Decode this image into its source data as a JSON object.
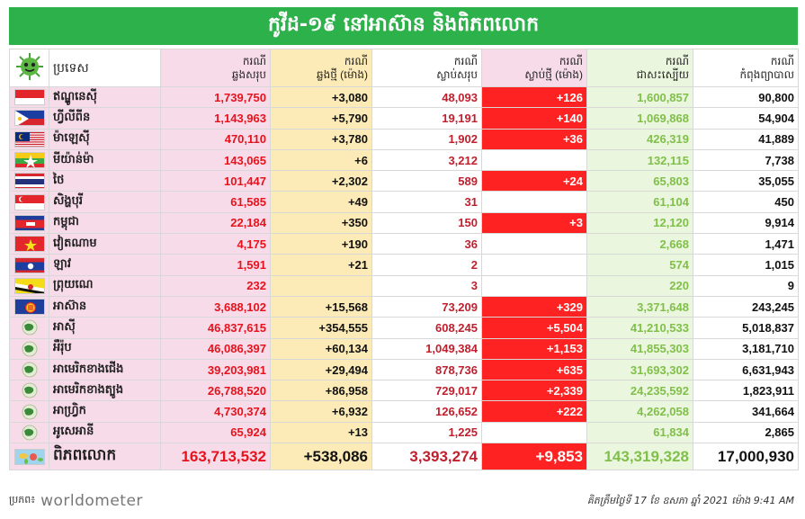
{
  "title": "កូវីដ-១៩ នៅអាស៊ាន និងពិភពលោក",
  "headers": {
    "country": "ប្រទេស",
    "cases": [
      "ករណី",
      "ឆ្លងសរុប"
    ],
    "new_cases": [
      "ករណី",
      "ឆ្លងថ្មី (ម៉ោង)"
    ],
    "deaths": [
      "ករណី",
      "ស្លាប់សរុប"
    ],
    "new_deaths": [
      "ករណី",
      "ស្លាប់ថ្មី (ម៉ោង)"
    ],
    "recovered": [
      "ករណី",
      "ជាសះស្បើយ"
    ],
    "active": [
      "ករណី",
      "កំពុងព្យាបាល"
    ]
  },
  "rows": [
    {
      "name": "ឥណ្ឌូនេស៊ី",
      "flag": "indonesia-flag",
      "cases": "1,739,750",
      "new_cases": "+3,080",
      "deaths": "48,093",
      "new_deaths": "+126",
      "recovered": "1,600,857",
      "active": "90,800"
    },
    {
      "name": "ហ្វីលីពីន",
      "flag": "philippines-flag",
      "cases": "1,143,963",
      "new_cases": "+5,790",
      "deaths": "19,191",
      "new_deaths": "+140",
      "recovered": "1,069,868",
      "active": "54,904"
    },
    {
      "name": "ម៉ាឡេស៊ី",
      "flag": "malaysia-flag",
      "cases": "470,110",
      "new_cases": "+3,780",
      "deaths": "1,902",
      "new_deaths": "+36",
      "recovered": "426,319",
      "active": "41,889"
    },
    {
      "name": "មីយ៉ាន់ម៉ា",
      "flag": "myanmar-flag",
      "cases": "143,065",
      "new_cases": "+6",
      "deaths": "3,212",
      "new_deaths": "",
      "recovered": "132,115",
      "active": "7,738"
    },
    {
      "name": "ថៃ",
      "flag": "thailand-flag",
      "cases": "101,447",
      "new_cases": "+2,302",
      "deaths": "589",
      "new_deaths": "+24",
      "recovered": "65,803",
      "active": "35,055"
    },
    {
      "name": "សិង្ហបុរី",
      "flag": "singapore-flag",
      "cases": "61,585",
      "new_cases": "+49",
      "deaths": "31",
      "new_deaths": "",
      "recovered": "61,104",
      "active": "450"
    },
    {
      "name": "កម្ពុជា",
      "flag": "cambodia-flag",
      "cases": "22,184",
      "new_cases": "+350",
      "deaths": "150",
      "new_deaths": "+3",
      "recovered": "12,120",
      "active": "9,914"
    },
    {
      "name": "វៀតណាម",
      "flag": "vietnam-flag",
      "cases": "4,175",
      "new_cases": "+190",
      "deaths": "36",
      "new_deaths": "",
      "recovered": "2,668",
      "active": "1,471"
    },
    {
      "name": "ឡាវ",
      "flag": "laos-flag",
      "cases": "1,591",
      "new_cases": "+21",
      "deaths": "2",
      "new_deaths": "",
      "recovered": "574",
      "active": "1,015"
    },
    {
      "name": "ព្រុយណេ",
      "flag": "brunei-flag",
      "cases": "232",
      "new_cases": "",
      "deaths": "3",
      "new_deaths": "",
      "recovered": "220",
      "active": "9"
    },
    {
      "name": "អាស៊ាន",
      "flag": "asean-flag",
      "cases": "3,688,102",
      "new_cases": "+15,568",
      "deaths": "73,209",
      "new_deaths": "+329",
      "recovered": "3,371,648",
      "active": "243,245"
    },
    {
      "name": "អាស៊ី",
      "flag": "asia-continent-icon",
      "cases": "46,837,615",
      "new_cases": "+354,555",
      "deaths": "608,245",
      "new_deaths": "+5,504",
      "recovered": "41,210,533",
      "active": "5,018,837"
    },
    {
      "name": "អឺរ៉ុប",
      "flag": "europe-continent-icon",
      "cases": "46,086,397",
      "new_cases": "+60,134",
      "deaths": "1,049,384",
      "new_deaths": "+1,153",
      "recovered": "41,855,303",
      "active": "3,181,710"
    },
    {
      "name": "អាមេរិកខាងជើង",
      "flag": "north-america-continent-icon",
      "cases": "39,203,981",
      "new_cases": "+29,494",
      "deaths": "878,736",
      "new_deaths": "+635",
      "recovered": "31,693,302",
      "active": "6,631,943"
    },
    {
      "name": "អាមេរិកខាងត្បូង",
      "flag": "south-america-continent-icon",
      "cases": "26,788,520",
      "new_cases": "+86,958",
      "deaths": "729,017",
      "new_deaths": "+2,339",
      "recovered": "24,235,592",
      "active": "1,823,911"
    },
    {
      "name": "អាហ្វ្រិក",
      "flag": "africa-continent-icon",
      "cases": "4,730,374",
      "new_cases": "+6,932",
      "deaths": "126,652",
      "new_deaths": "+222",
      "recovered": "4,262,058",
      "active": "341,664"
    },
    {
      "name": "អូសេអានី",
      "flag": "oceania-continent-icon",
      "cases": "65,924",
      "new_cases": "+13",
      "deaths": "1,225",
      "new_deaths": "",
      "recovered": "61,834",
      "active": "2,865"
    }
  ],
  "world": {
    "name": "ពិភពលោក",
    "flag": "world-map-icon",
    "cases": "163,713,532",
    "new_cases": "+538,086",
    "deaths": "3,393,274",
    "new_deaths": "+9,853",
    "recovered": "143,319,328",
    "active": "17,000,930"
  },
  "footer": {
    "source_label": "ប្រភព៖",
    "source_brand": "worldometer",
    "updated": "គិតត្រឹមថ្ងៃទី 17 ខែ ឧសភា ឆ្នាំ 2021 ម៉ោង 9:41 AM"
  }
}
